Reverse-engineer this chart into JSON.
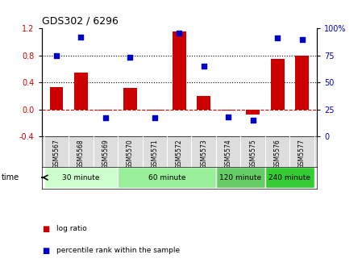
{
  "title": "GDS302 / 6296",
  "samples": [
    "GSM5567",
    "GSM5568",
    "GSM5569",
    "GSM5570",
    "GSM5571",
    "GSM5572",
    "GSM5573",
    "GSM5574",
    "GSM5575",
    "GSM5576",
    "GSM5577"
  ],
  "log_ratio": [
    0.33,
    0.55,
    -0.02,
    0.32,
    -0.02,
    1.15,
    0.2,
    -0.02,
    -0.08,
    0.75,
    0.8
  ],
  "percentile": [
    75,
    92,
    17,
    73,
    17,
    96,
    65,
    18,
    15,
    91,
    90
  ],
  "bar_color": "#cc0000",
  "dot_color": "#0000cc",
  "ylim_left": [
    -0.4,
    1.2
  ],
  "ylim_right": [
    0,
    100
  ],
  "yticks_left": [
    -0.4,
    0.0,
    0.4,
    0.8,
    1.2
  ],
  "yticks_right": [
    0,
    25,
    50,
    75,
    100
  ],
  "hlines": [
    0.4,
    0.8
  ],
  "zero_line_color": "#cc0000",
  "groups": [
    {
      "label": "30 minute",
      "indices": [
        0,
        1,
        2
      ],
      "color": "#ccffcc"
    },
    {
      "label": "60 minute",
      "indices": [
        3,
        4,
        5,
        6
      ],
      "color": "#99ee99"
    },
    {
      "label": "120 minute",
      "indices": [
        7,
        8
      ],
      "color": "#66cc66"
    },
    {
      "label": "240 minute",
      "indices": [
        9,
        10
      ],
      "color": "#33cc33"
    }
  ],
  "time_label": "time",
  "legend_entries": [
    "log ratio",
    "percentile rank within the sample"
  ],
  "legend_colors": [
    "#cc0000",
    "#0000cc"
  ],
  "bg_color": "#ffffff",
  "sample_bg_color": "#dddddd",
  "title_fontsize": 9,
  "bar_width": 0.55
}
